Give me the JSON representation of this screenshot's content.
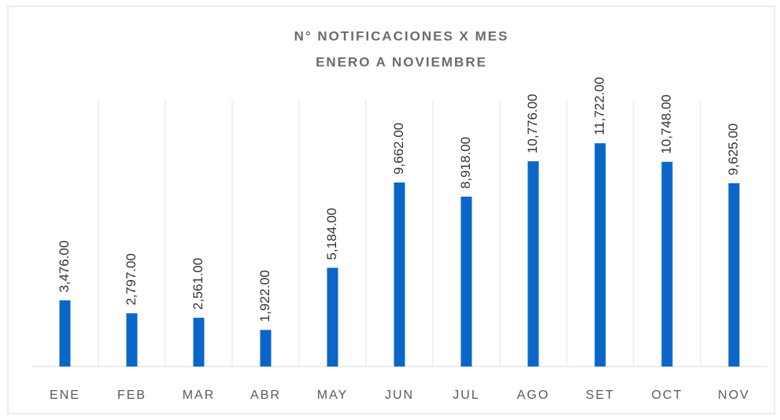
{
  "chart_data": {
    "type": "bar",
    "title": "N° NOTIFICACIONES X MES",
    "subtitle": "ENERO A NOVIEMBRE",
    "categories": [
      "ENE",
      "FEB",
      "MAR",
      "ABR",
      "MAY",
      "JUN",
      "JUL",
      "AGO",
      "SET",
      "OCT",
      "NOV"
    ],
    "values": [
      3476,
      2797,
      2561,
      1922,
      5184,
      9662,
      8918,
      10776,
      11722,
      10748,
      9625
    ],
    "value_labels": [
      "3,476.00",
      "2,797.00",
      "2,561.00",
      "1,922.00",
      "5,184.00",
      "9,662.00",
      "8,918.00",
      "10,776.00",
      "11,722.00",
      "10,748.00",
      "9,625.00"
    ],
    "color": "#0a66c8",
    "ylim": [
      0,
      14000
    ],
    "grid": true
  }
}
